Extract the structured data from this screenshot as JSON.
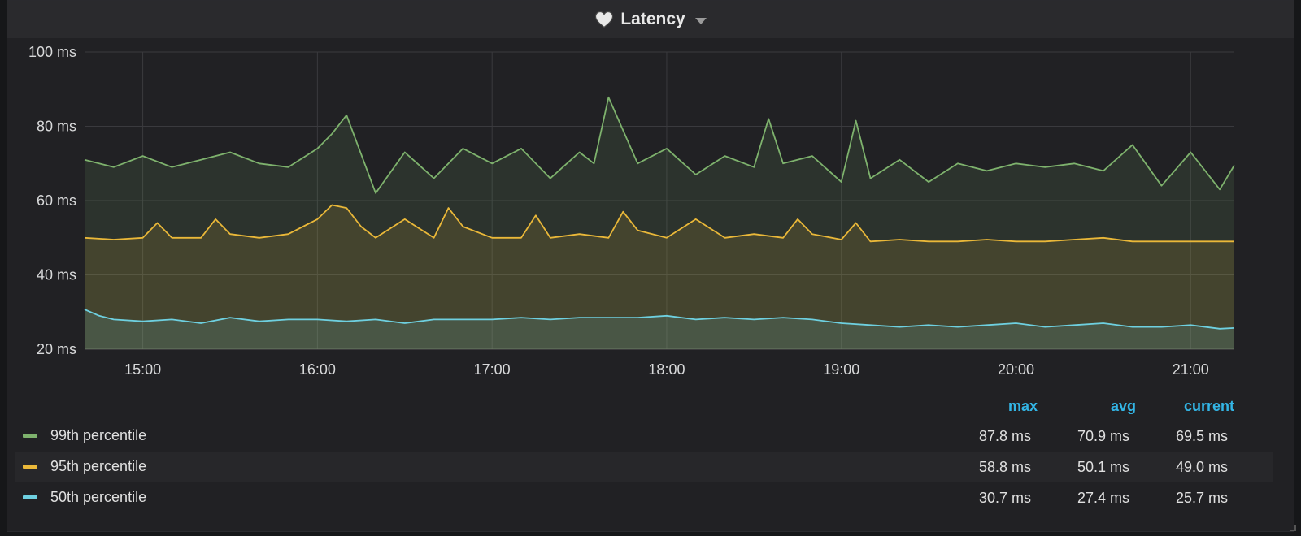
{
  "panel": {
    "title": "Latency",
    "icon": "heart-icon",
    "menu_icon": "chevron-down-icon"
  },
  "legend": {
    "columns": [
      "max",
      "avg",
      "current"
    ],
    "rows": [
      {
        "name": "99th percentile",
        "color": "#7eb26d",
        "max": "87.8 ms",
        "avg": "70.9 ms",
        "current": "69.5 ms"
      },
      {
        "name": "95th percentile",
        "color": "#eab839",
        "max": "58.8 ms",
        "avg": "50.1 ms",
        "current": "49.0 ms"
      },
      {
        "name": "50th percentile",
        "color": "#6ed0e0",
        "max": "30.7 ms",
        "avg": "27.4 ms",
        "current": "25.7 ms"
      }
    ]
  },
  "chart_data": {
    "type": "area",
    "ylim": [
      20,
      100
    ],
    "yticks": [
      {
        "value": 20,
        "label": "20 ms"
      },
      {
        "value": 40,
        "label": "40 ms"
      },
      {
        "value": 60,
        "label": "60 ms"
      },
      {
        "value": 80,
        "label": "80 ms"
      },
      {
        "value": 100,
        "label": "100 ms"
      }
    ],
    "xlim": [
      "14:40",
      "21:15"
    ],
    "xticks": [
      "15:00",
      "16:00",
      "17:00",
      "18:00",
      "19:00",
      "20:00",
      "21:00"
    ],
    "grid": true,
    "legend_position": "bottom",
    "series": [
      {
        "name": "99th percentile",
        "color": "#7eb26d",
        "x": [
          "14:40",
          "14:50",
          "15:00",
          "15:10",
          "15:20",
          "15:30",
          "15:40",
          "15:50",
          "16:00",
          "16:05",
          "16:10",
          "16:20",
          "16:30",
          "16:40",
          "16:50",
          "17:00",
          "17:10",
          "17:20",
          "17:30",
          "17:35",
          "17:40",
          "17:50",
          "18:00",
          "18:10",
          "18:20",
          "18:30",
          "18:35",
          "18:40",
          "18:50",
          "19:00",
          "19:05",
          "19:10",
          "19:20",
          "19:30",
          "19:40",
          "19:50",
          "20:00",
          "20:10",
          "20:20",
          "20:30",
          "20:40",
          "20:50",
          "21:00",
          "21:10",
          "21:15"
        ],
        "y": [
          71,
          69,
          72,
          69,
          71,
          73,
          70,
          69,
          74,
          78,
          83,
          62,
          73,
          66,
          74,
          70,
          74,
          66,
          73,
          70,
          87.8,
          70,
          74,
          67,
          72,
          69,
          82,
          70,
          72,
          65,
          81.5,
          66,
          71,
          65,
          70,
          68,
          70,
          69,
          70,
          68,
          75,
          64,
          73,
          63,
          69.5
        ]
      },
      {
        "name": "95th percentile",
        "color": "#eab839",
        "x": [
          "14:40",
          "14:50",
          "15:00",
          "15:05",
          "15:10",
          "15:20",
          "15:25",
          "15:30",
          "15:40",
          "15:50",
          "16:00",
          "16:05",
          "16:10",
          "16:15",
          "16:20",
          "16:30",
          "16:40",
          "16:45",
          "16:50",
          "17:00",
          "17:10",
          "17:15",
          "17:20",
          "17:30",
          "17:40",
          "17:45",
          "17:50",
          "18:00",
          "18:10",
          "18:20",
          "18:30",
          "18:40",
          "18:45",
          "18:50",
          "19:00",
          "19:05",
          "19:10",
          "19:20",
          "19:30",
          "19:40",
          "19:50",
          "20:00",
          "20:10",
          "20:20",
          "20:30",
          "20:40",
          "20:50",
          "21:00",
          "21:10",
          "21:15"
        ],
        "y": [
          50,
          49.5,
          50,
          54,
          50,
          50,
          55,
          51,
          50,
          51,
          55,
          58.8,
          58,
          53,
          50,
          55,
          50,
          58,
          53,
          50,
          50,
          56,
          50,
          51,
          50,
          57,
          52,
          50,
          55,
          50,
          51,
          50,
          55,
          51,
          49.5,
          54,
          49,
          49.5,
          49,
          49,
          49.5,
          49,
          49,
          49.5,
          50,
          49,
          49,
          49,
          49,
          49
        ]
      },
      {
        "name": "50th percentile",
        "color": "#6ed0e0",
        "x": [
          "14:40",
          "14:45",
          "14:50",
          "15:00",
          "15:10",
          "15:20",
          "15:30",
          "15:40",
          "15:50",
          "16:00",
          "16:10",
          "16:20",
          "16:30",
          "16:40",
          "16:50",
          "17:00",
          "17:10",
          "17:20",
          "17:30",
          "17:40",
          "17:50",
          "18:00",
          "18:10",
          "18:20",
          "18:30",
          "18:40",
          "18:50",
          "19:00",
          "19:10",
          "19:20",
          "19:30",
          "19:40",
          "19:50",
          "20:00",
          "20:10",
          "20:20",
          "20:30",
          "20:40",
          "20:50",
          "21:00",
          "21:10",
          "21:15"
        ],
        "y": [
          30.7,
          29,
          28,
          27.5,
          28,
          27,
          28.5,
          27.5,
          28,
          28,
          27.5,
          28,
          27,
          28,
          28,
          28,
          28.5,
          28,
          28.5,
          28.5,
          28.5,
          29,
          28,
          28.5,
          28,
          28.5,
          28,
          27,
          26.5,
          26,
          26.5,
          26,
          26.5,
          27,
          26,
          26.5,
          27,
          26,
          26,
          26.5,
          25.5,
          25.7
        ]
      }
    ]
  }
}
